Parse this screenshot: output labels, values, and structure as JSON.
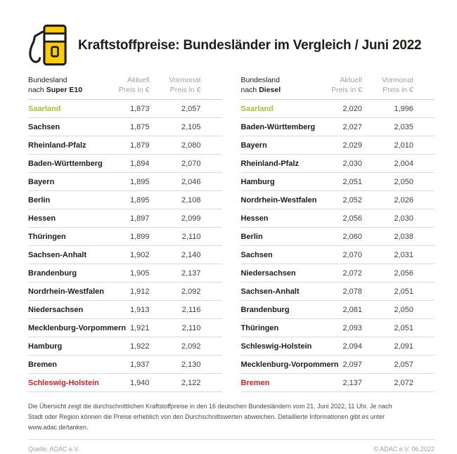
{
  "page": {
    "title": "Kraftstoffpreise: Bundesländer im Vergleich / Juni 2022"
  },
  "icons": {
    "fuel_pump": "fuel-pump-icon"
  },
  "colors": {
    "adac_yellow": "#FFCC00",
    "outline_dark": "#1D1D1B",
    "highlight_green": "#A4C13D",
    "highlight_red": "#D2232A",
    "header_gray": "#A2A2A2",
    "separator_gray": "#D9D9D9"
  },
  "tables": [
    {
      "head": {
        "col1_line1": "Bundesland",
        "col1_prefix": "nach ",
        "col1_fuel": "Super E10",
        "col2_line1": "Aktuell",
        "col2_line2": "Preis in €",
        "col3_line1": "Vormonat",
        "col3_line2": "Preis in €"
      },
      "rows": [
        {
          "state": "Saarland",
          "current": "1,873",
          "previous": "2,057",
          "highlight": "green"
        },
        {
          "state": "Sachsen",
          "current": "1,875",
          "previous": "2,105"
        },
        {
          "state": "Rheinland-Pfalz",
          "current": "1,879",
          "previous": "2,080"
        },
        {
          "state": "Baden-Württemberg",
          "current": "1,894",
          "previous": "2,070"
        },
        {
          "state": "Bayern",
          "current": "1,895",
          "previous": "2,046"
        },
        {
          "state": "Berlin",
          "current": "1,895",
          "previous": "2,108"
        },
        {
          "state": "Hessen",
          "current": "1,897",
          "previous": "2,099"
        },
        {
          "state": "Thüringen",
          "current": "1,899",
          "previous": "2,110"
        },
        {
          "state": "Sachsen-Anhalt",
          "current": "1,902",
          "previous": "2,140"
        },
        {
          "state": "Brandenburg",
          "current": "1,905",
          "previous": "2,137"
        },
        {
          "state": "Nordrhein-Westfalen",
          "current": "1,912",
          "previous": "2,092"
        },
        {
          "state": "Niedersachsen",
          "current": "1,913",
          "previous": "2,116"
        },
        {
          "state": "Mecklenburg-Vorpommern",
          "current": "1,921",
          "previous": "2,110"
        },
        {
          "state": "Hamburg",
          "current": "1,922",
          "previous": "2,092"
        },
        {
          "state": "Bremen",
          "current": "1,937",
          "previous": "2,130"
        },
        {
          "state": "Schleswig-Holstein",
          "current": "1,940",
          "previous": "2,122",
          "highlight": "red"
        }
      ]
    },
    {
      "head": {
        "col1_line1": "Bundesland",
        "col1_prefix": "nach ",
        "col1_fuel": "Diesel",
        "col2_line1": "Aktuell",
        "col2_line2": "Preis in €",
        "col3_line1": "Vormonat",
        "col3_line2": "Preis in €"
      },
      "rows": [
        {
          "state": "Saarland",
          "current": "2,020",
          "previous": "1,996",
          "highlight": "green"
        },
        {
          "state": "Baden-Württemberg",
          "current": "2,027",
          "previous": "2,035"
        },
        {
          "state": "Bayern",
          "current": "2,029",
          "previous": "2,010"
        },
        {
          "state": "Rheinland-Pfalz",
          "current": "2,030",
          "previous": "2,004"
        },
        {
          "state": "Hamburg",
          "current": "2,051",
          "previous": "2,050"
        },
        {
          "state": "Nordrhein-Westfalen",
          "current": "2,052",
          "previous": "2,026"
        },
        {
          "state": "Hessen",
          "current": "2,056",
          "previous": "2,030"
        },
        {
          "state": "Berlin",
          "current": "2,060",
          "previous": "2,038"
        },
        {
          "state": "Sachsen",
          "current": "2,070",
          "previous": "2,031"
        },
        {
          "state": "Niedersachsen",
          "current": "2,072",
          "previous": "2,056"
        },
        {
          "state": "Sachsen-Anhalt",
          "current": "2,078",
          "previous": "2,051"
        },
        {
          "state": "Brandenburg",
          "current": "2,081",
          "previous": "2,050"
        },
        {
          "state": "Thüringen",
          "current": "2,093",
          "previous": "2,051"
        },
        {
          "state": "Schleswig-Holstein",
          "current": "2,094",
          "previous": "2,091"
        },
        {
          "state": "Mecklenburg-Vorpommern",
          "current": "2,097",
          "previous": "2,057"
        },
        {
          "state": "Bremen",
          "current": "2,137",
          "previous": "2,072",
          "highlight": "red"
        }
      ]
    }
  ],
  "footnote": {
    "text": "Die Übersicht zeigt die durchschnittlichen Kraftstoffpreise in den 16 deutschen Bundesländern vom 21. Juni 2022, 11 Uhr. Je nach Stadt oder Region können die Preise erheblich von den Durchschnittswerten abweichen. Detaillierte Informationen gibt es unter www.adac.de/tanken."
  },
  "source": {
    "left": "Quelle: ADAC e.V.",
    "right": "© ADAC e.V. 06.2022"
  },
  "chart_data": [
    {
      "type": "table",
      "title": "Kraftstoffpreise Super E10 nach Bundesland (Preis in €), Juni 2022",
      "columns": [
        "Bundesland nach Super E10",
        "Aktuell Preis in €",
        "Vormonat Preis in €"
      ],
      "rows": [
        [
          "Saarland",
          1.873,
          2.057
        ],
        [
          "Sachsen",
          1.875,
          2.105
        ],
        [
          "Rheinland-Pfalz",
          1.879,
          2.08
        ],
        [
          "Baden-Württemberg",
          1.894,
          2.07
        ],
        [
          "Bayern",
          1.895,
          2.046
        ],
        [
          "Berlin",
          1.895,
          2.108
        ],
        [
          "Hessen",
          1.897,
          2.099
        ],
        [
          "Thüringen",
          1.899,
          2.11
        ],
        [
          "Sachsen-Anhalt",
          1.902,
          2.14
        ],
        [
          "Brandenburg",
          1.905,
          2.137
        ],
        [
          "Nordrhein-Westfalen",
          1.912,
          2.092
        ],
        [
          "Niedersachsen",
          1.913,
          2.116
        ],
        [
          "Mecklenburg-Vorpommern",
          1.921,
          2.11
        ],
        [
          "Hamburg",
          1.922,
          2.092
        ],
        [
          "Bremen",
          1.937,
          2.13
        ],
        [
          "Schleswig-Holstein",
          1.94,
          2.122
        ]
      ],
      "annotations": [
        "Saarland = cheapest (green)",
        "Schleswig-Holstein = most expensive (red)"
      ]
    },
    {
      "type": "table",
      "title": "Kraftstoffpreise Diesel nach Bundesland (Preis in €), Juni 2022",
      "columns": [
        "Bundesland nach Diesel",
        "Aktuell Preis in €",
        "Vormonat Preis in €"
      ],
      "rows": [
        [
          "Saarland",
          2.02,
          1.996
        ],
        [
          "Baden-Württemberg",
          2.027,
          2.035
        ],
        [
          "Bayern",
          2.029,
          2.01
        ],
        [
          "Rheinland-Pfalz",
          2.03,
          2.004
        ],
        [
          "Hamburg",
          2.051,
          2.05
        ],
        [
          "Nordrhein-Westfalen",
          2.052,
          2.026
        ],
        [
          "Hessen",
          2.056,
          2.03
        ],
        [
          "Berlin",
          2.06,
          2.038
        ],
        [
          "Sachsen",
          2.07,
          2.031
        ],
        [
          "Niedersachsen",
          2.072,
          2.056
        ],
        [
          "Sachsen-Anhalt",
          2.078,
          2.051
        ],
        [
          "Brandenburg",
          2.081,
          2.05
        ],
        [
          "Thüringen",
          2.093,
          2.051
        ],
        [
          "Schleswig-Holstein",
          2.094,
          2.091
        ],
        [
          "Mecklenburg-Vorpommern",
          2.097,
          2.057
        ],
        [
          "Bremen",
          2.137,
          2.072
        ]
      ],
      "annotations": [
        "Saarland = cheapest (green)",
        "Bremen = most expensive (red)"
      ]
    }
  ]
}
